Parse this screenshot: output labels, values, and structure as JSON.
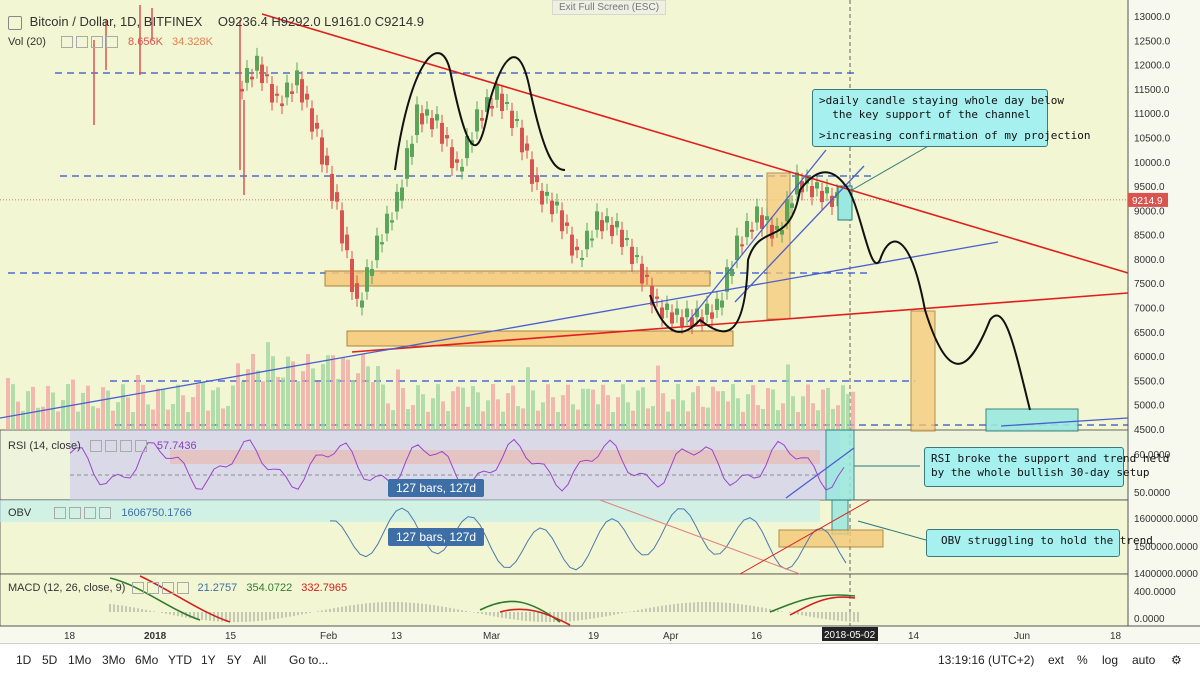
{
  "header": {
    "symbol": "Bitcoin / Dollar, 1D, BITFINEX",
    "ohlc": "O9236.4  H9292.0  L9161.0  C9214.9",
    "vol_label": "Vol (20)",
    "vol_v1": "8.656K",
    "vol_v2": "34.328K",
    "exit_fullscreen": "Exit Full Screen (ESC)"
  },
  "price_axis": {
    "ticks": [
      "13000.0",
      "12500.0",
      "12000.0",
      "11500.0",
      "11000.0",
      "10500.0",
      "10000.0",
      "9500.0",
      "9000.0",
      "8500.0",
      "8000.0",
      "7500.0",
      "7000.0",
      "6500.0",
      "6000.0",
      "5500.0",
      "5000.0",
      "4500.0"
    ],
    "last_price": "9214.9"
  },
  "time_axis": {
    "labels": [
      "18",
      "2018",
      "15",
      "Feb",
      "13",
      "Mar",
      "19",
      "Apr",
      "16",
      "14",
      "Jun",
      "18"
    ],
    "cursor_date": "2018-05-02"
  },
  "rsi": {
    "label": "RSI (14, close)",
    "value": "57.7436",
    "ticks": [
      "60.0000",
      "50.0000"
    ]
  },
  "obv": {
    "label": "OBV",
    "value": "1606750.1766",
    "ticks": [
      "1600000.0000",
      "1500000.0000",
      "1400000.0000"
    ]
  },
  "macd": {
    "label": "MACD (12, 26, close, 9)",
    "v1": "21.2757",
    "v2": "354.0722",
    "v3": "332.7965",
    "ticks": [
      "400.0000",
      "0.0000"
    ]
  },
  "badges": [
    "127 bars, 127d",
    "127 bars, 127d"
  ],
  "callouts": {
    "main_line1": ">daily candle staying whole day below\n  the key support of the channel",
    "main_line2": ">increasing confirmation of my projection",
    "rsi": "RSI broke the support and trend held\nby the whole bullish 30-day setup",
    "obv": "OBV struggling to hold the trend"
  },
  "bottom_bar": {
    "ranges": [
      "1D",
      "5D",
      "1Mo",
      "3Mo",
      "6Mo",
      "YTD",
      "1Y",
      "5Y",
      "All"
    ],
    "goto": "Go to...",
    "clock": "13:19:16 (UTC+2)",
    "opts": [
      "ext",
      "%",
      "log",
      "auto"
    ]
  },
  "colors": {
    "background": "#f3f6d2",
    "up": "#5aa55a",
    "down": "#d9534f",
    "trend_red": "#e02020",
    "trend_blue": "#4a5fd0",
    "box_orange": "#f5c978",
    "callout": "#a6f0f0"
  }
}
